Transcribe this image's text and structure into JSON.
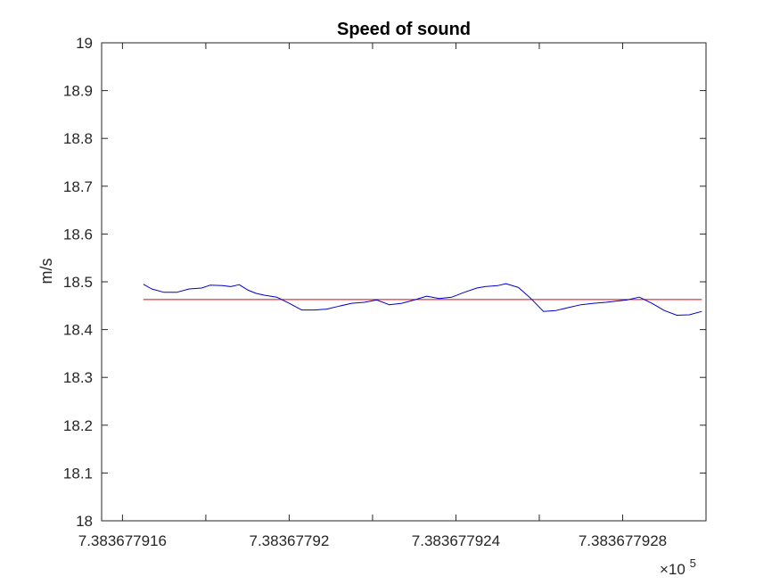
{
  "chart_data": {
    "type": "line",
    "title": "Speed of sound",
    "xlabel": "",
    "ylabel": "m/s",
    "x_exponent_label": "×10",
    "x_exponent_power": "5",
    "xlim": [
      7.3836779155,
      7.38367793
    ],
    "ylim": [
      18.0,
      19.0
    ],
    "xticks": [
      7.383677916,
      7.383677918,
      7.38367792,
      7.383677922,
      7.383677924,
      7.383677926,
      7.383677928
    ],
    "xtick_labels": [
      "7.383677916",
      "",
      "7.38367792",
      "",
      "7.383677924",
      "",
      "7.383677928"
    ],
    "yticks": [
      18.0,
      18.1,
      18.2,
      18.3,
      18.4,
      18.5,
      18.6,
      18.7,
      18.8,
      18.9,
      19.0
    ],
    "ytick_labels": [
      "18",
      "18.1",
      "18.2",
      "18.3",
      "18.4",
      "18.5",
      "18.6",
      "18.7",
      "18.8",
      "18.9",
      "19"
    ],
    "grid": false,
    "legend": "none",
    "colors": {
      "series": "#0000cc",
      "mean": "#e8000b",
      "axes": "#262626"
    },
    "series": [
      {
        "x": [
          7.3836779165,
          7.3836779167,
          7.383677917,
          7.3836779173,
          7.3836779176,
          7.3836779179,
          7.3836779181,
          7.3836779184,
          7.3836779186,
          7.3836779188,
          7.383677919,
          7.3836779192,
          7.3836779194,
          7.3836779197,
          7.38367792,
          7.3836779203,
          7.3836779206,
          7.3836779209,
          7.3836779212,
          7.3836779215,
          7.3836779218,
          7.3836779221,
          7.3836779224,
          7.3836779227,
          7.383677923,
          7.3836779233,
          7.3836779236,
          7.3836779239,
          7.3836779242,
          7.3836779245,
          7.3836779247,
          7.383677925,
          7.3836779252,
          7.3836779255,
          7.3836779258,
          7.3836779261,
          7.3836779264,
          7.3836779267,
          7.383677927,
          7.3836779273,
          7.3836779276,
          7.3836779279,
          7.3836779281,
          7.3836779284,
          7.3836779287,
          7.383677929,
          7.3836779293,
          7.3836779296,
          7.3836779299
        ],
        "y": [
          18.495,
          18.485,
          18.478,
          18.478,
          18.485,
          18.487,
          18.493,
          18.492,
          18.49,
          18.494,
          18.483,
          18.476,
          18.472,
          18.468,
          18.455,
          18.441,
          18.441,
          18.443,
          18.449,
          18.455,
          18.457,
          18.462,
          18.452,
          18.455,
          18.462,
          18.47,
          18.465,
          18.468,
          18.478,
          18.487,
          18.49,
          18.492,
          18.496,
          18.488,
          18.465,
          18.438,
          18.44,
          18.446,
          18.452,
          18.455,
          18.457,
          18.46,
          18.462,
          18.468,
          18.455,
          18.44,
          18.43,
          18.431,
          18.438
        ]
      }
    ],
    "mean_line": {
      "x": [
        7.3836779165,
        7.3836779299
      ],
      "y": 18.463
    }
  }
}
